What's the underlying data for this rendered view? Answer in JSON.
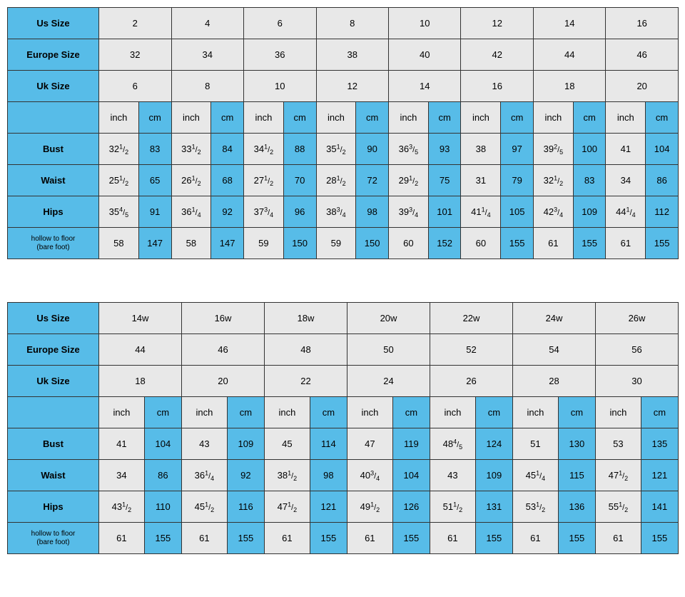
{
  "colors": {
    "header_bg": "#57bce8",
    "value_bg": "#e8e8e8",
    "border": "#333333"
  },
  "table1": {
    "label_col_width": 128,
    "size_headers": [
      "Us Size",
      "Europe Size",
      "Uk Size"
    ],
    "cols": 8,
    "us": [
      "2",
      "4",
      "6",
      "8",
      "10",
      "12",
      "14",
      "16"
    ],
    "europe": [
      "32",
      "34",
      "36",
      "38",
      "40",
      "42",
      "44",
      "46"
    ],
    "uk": [
      "6",
      "8",
      "10",
      "12",
      "14",
      "16",
      "18",
      "20"
    ],
    "unit_labels": [
      "inch",
      "cm"
    ],
    "measurements": [
      {
        "label": "Bust",
        "inch": [
          "32½",
          "33½",
          "34½",
          "35½",
          "36⅗",
          "38",
          "39⅖",
          "41"
        ],
        "cm": [
          "83",
          "84",
          "88",
          "90",
          "93",
          "97",
          "100",
          "104"
        ]
      },
      {
        "label": "Waist",
        "inch": [
          "25½",
          "26½",
          "27½",
          "28½",
          "29½",
          "31",
          "32½",
          "34"
        ],
        "cm": [
          "65",
          "68",
          "70",
          "72",
          "75",
          "79",
          "83",
          "86"
        ]
      },
      {
        "label": "Hips",
        "inch": [
          "35⅘",
          "36¼",
          "37¾",
          "38¾",
          "39¾",
          "41¼",
          "42¾",
          "44¼"
        ],
        "cm": [
          "91",
          "92",
          "96",
          "98",
          "101",
          "105",
          "109",
          "112"
        ]
      },
      {
        "label": "hollow to floor (bare foot)",
        "small": true,
        "inch": [
          "58",
          "58",
          "59",
          "59",
          "60",
          "60",
          "61",
          "61"
        ],
        "cm": [
          "147",
          "147",
          "150",
          "150",
          "152",
          "155",
          "155",
          "155"
        ]
      }
    ]
  },
  "table2": {
    "label_col_width": 128,
    "size_headers": [
      "Us Size",
      "Europe Size",
      "Uk Size"
    ],
    "cols": 7,
    "us": [
      "14w",
      "16w",
      "18w",
      "20w",
      "22w",
      "24w",
      "26w"
    ],
    "europe": [
      "44",
      "46",
      "48",
      "50",
      "52",
      "54",
      "56"
    ],
    "uk": [
      "18",
      "20",
      "22",
      "24",
      "26",
      "28",
      "30"
    ],
    "unit_labels": [
      "inch",
      "cm"
    ],
    "measurements": [
      {
        "label": "Bust",
        "inch": [
          "41",
          "43",
          "45",
          "47",
          "48⅘",
          "51",
          "53"
        ],
        "cm": [
          "104",
          "109",
          "114",
          "119",
          "124",
          "130",
          "135"
        ]
      },
      {
        "label": "Waist",
        "inch": [
          "34",
          "36¼",
          "38½",
          "40¾",
          "43",
          "45¼",
          "47½"
        ],
        "cm": [
          "86",
          "92",
          "98",
          "104",
          "109",
          "115",
          "121"
        ]
      },
      {
        "label": "Hips",
        "inch": [
          "43½",
          "45½",
          "47½",
          "49½",
          "51½",
          "53½",
          "55½"
        ],
        "cm": [
          "110",
          "116",
          "121",
          "126",
          "131",
          "136",
          "141"
        ]
      },
      {
        "label": "hollow to floor (bare foot)",
        "small": true,
        "inch": [
          "61",
          "61",
          "61",
          "61",
          "61",
          "61",
          "61"
        ],
        "cm": [
          "155",
          "155",
          "155",
          "155",
          "155",
          "155",
          "155"
        ]
      }
    ]
  }
}
